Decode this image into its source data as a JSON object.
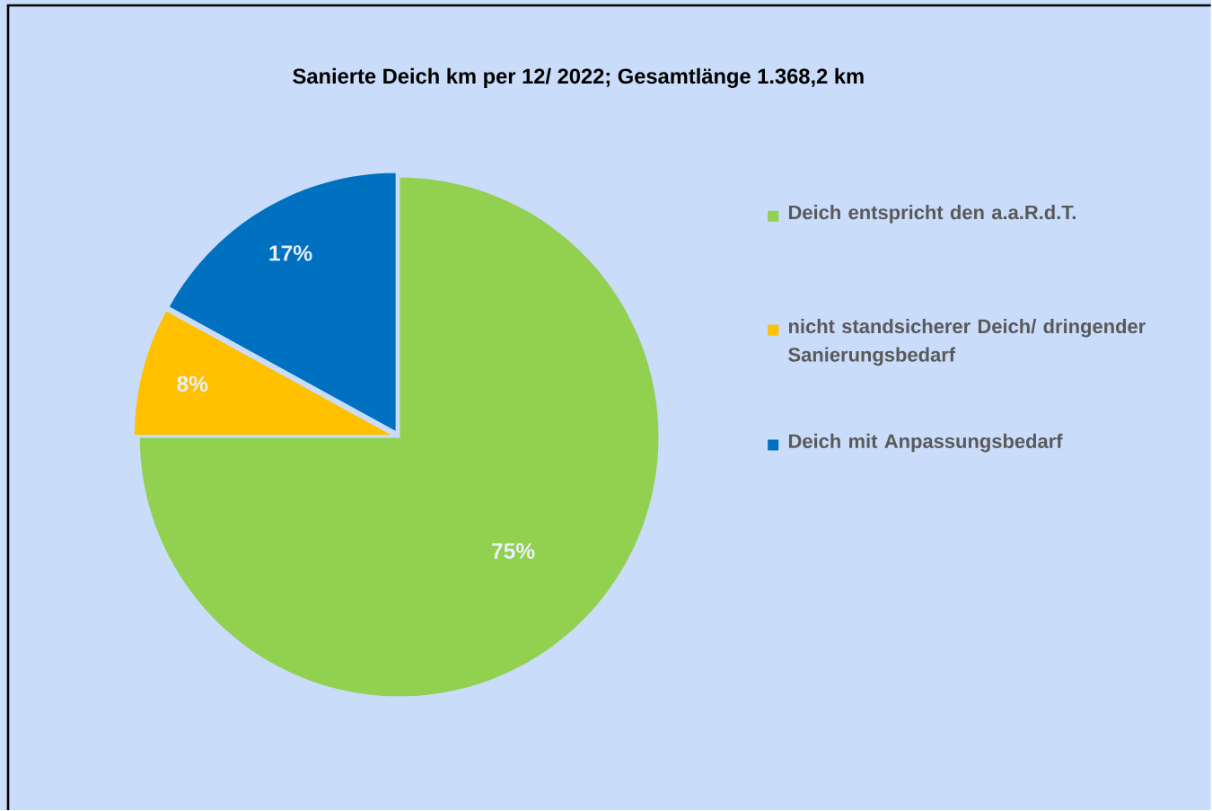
{
  "chart_data": {
    "type": "pie",
    "title": "Sanierte Deich km per 12/ 2022;       Gesamtlänge 1.368,2 km",
    "categories": [
      "Deich entspricht den  a.a.R.d.T.",
      "nicht standsicherer Deich/ dringender Sanierungsbedarf",
      "Deich mit Anpassungsbedarf"
    ],
    "values": [
      75,
      8,
      17
    ],
    "colors": [
      "#92d050",
      "#ffc000",
      "#0070c0"
    ],
    "value_labels": [
      "75%",
      "8%",
      "17%"
    ],
    "legend": "right"
  }
}
